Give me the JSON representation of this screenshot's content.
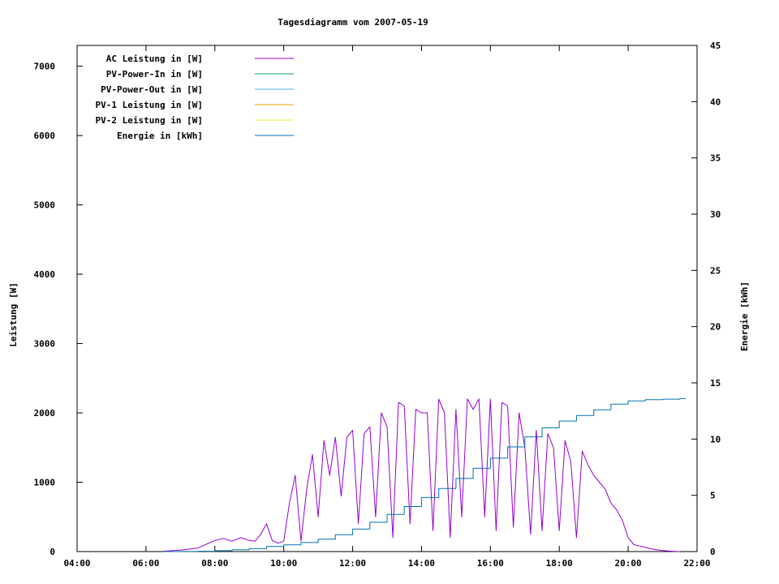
{
  "chart_data": {
    "type": "line",
    "title": "Tagesdiagramm vom 2007-05-19",
    "ylabel": "Leistung [W]",
    "y2label": "Energie [kWh]",
    "xlabel": "",
    "xlim": [
      "04:00",
      "22:00"
    ],
    "ylim": [
      0,
      7300
    ],
    "y2lim": [
      0,
      45
    ],
    "x_ticks": [
      "04:00",
      "06:00",
      "08:00",
      "10:00",
      "12:00",
      "14:00",
      "16:00",
      "18:00",
      "20:00",
      "22:00"
    ],
    "y_ticks": [
      0,
      1000,
      2000,
      3000,
      4000,
      5000,
      6000,
      7000
    ],
    "y2_ticks": [
      0,
      5,
      10,
      15,
      20,
      25,
      30,
      35,
      40,
      45
    ],
    "grid": false,
    "legend_position": "top-left",
    "legend": [
      {
        "label": "AC Leistung in [W]",
        "color": "#9400d3"
      },
      {
        "label": "PV-Power-In in [W]",
        "color": "#009e73"
      },
      {
        "label": "PV-Power-Out in [W]",
        "color": "#56b4e9"
      },
      {
        "label": "PV-1 Leistung in [W]",
        "color": "#e69f00"
      },
      {
        "label": "PV-2 Leistung in [W]",
        "color": "#f0e442"
      },
      {
        "label": "Energie in [kWh]",
        "color": "#0072b2"
      }
    ],
    "series": [
      {
        "name": "AC Leistung in [W]",
        "color": "#9400d3",
        "axis": "left",
        "x": [
          "06:30",
          "07:00",
          "07:30",
          "08:00",
          "08:15",
          "08:30",
          "08:45",
          "09:00",
          "09:10",
          "09:20",
          "09:30",
          "09:40",
          "09:50",
          "10:00",
          "10:10",
          "10:20",
          "10:30",
          "10:40",
          "10:50",
          "11:00",
          "11:10",
          "11:20",
          "11:30",
          "11:40",
          "11:50",
          "12:00",
          "12:10",
          "12:20",
          "12:30",
          "12:40",
          "12:50",
          "13:00",
          "13:10",
          "13:20",
          "13:30",
          "13:40",
          "13:50",
          "14:00",
          "14:10",
          "14:20",
          "14:30",
          "14:40",
          "14:50",
          "15:00",
          "15:10",
          "15:20",
          "15:30",
          "15:40",
          "15:50",
          "16:00",
          "16:10",
          "16:20",
          "16:30",
          "16:40",
          "16:50",
          "17:00",
          "17:10",
          "17:20",
          "17:30",
          "17:40",
          "17:50",
          "18:00",
          "18:10",
          "18:20",
          "18:30",
          "18:40",
          "18:50",
          "19:00",
          "19:10",
          "19:20",
          "19:30",
          "19:40",
          "19:50",
          "20:00",
          "20:10",
          "20:20",
          "20:30",
          "20:40",
          "20:50",
          "21:00",
          "21:10",
          "21:20",
          "21:30"
        ],
        "values": [
          5,
          20,
          50,
          160,
          190,
          150,
          200,
          160,
          150,
          250,
          400,
          160,
          120,
          150,
          700,
          1100,
          150,
          900,
          1400,
          500,
          1600,
          1100,
          1650,
          800,
          1650,
          1750,
          400,
          1700,
          1800,
          500,
          2000,
          1800,
          200,
          2150,
          2100,
          400,
          2050,
          2000,
          2000,
          300,
          2200,
          2000,
          200,
          2050,
          500,
          2200,
          2050,
          2200,
          500,
          2200,
          300,
          2150,
          2100,
          350,
          2000,
          1500,
          250,
          1750,
          300,
          1700,
          1500,
          300,
          1600,
          1300,
          200,
          1450,
          1250,
          1100,
          1000,
          900,
          700,
          600,
          450,
          200,
          100,
          80,
          60,
          40,
          25,
          15,
          8,
          3,
          0
        ]
      },
      {
        "name": "Energie in [kWh]",
        "color": "#0072b2",
        "axis": "right",
        "x": [
          "06:30",
          "07:00",
          "07:30",
          "08:00",
          "08:30",
          "09:00",
          "09:30",
          "10:00",
          "10:30",
          "11:00",
          "11:30",
          "12:00",
          "12:30",
          "13:00",
          "13:30",
          "14:00",
          "14:30",
          "15:00",
          "15:30",
          "16:00",
          "16:30",
          "17:00",
          "17:30",
          "18:00",
          "18:30",
          "19:00",
          "19:30",
          "20:00",
          "20:30",
          "21:00",
          "21:30",
          "21:40"
        ],
        "values": [
          0,
          0.01,
          0.03,
          0.08,
          0.16,
          0.26,
          0.45,
          0.6,
          0.8,
          1.1,
          1.5,
          2.0,
          2.6,
          3.3,
          4.0,
          4.8,
          5.6,
          6.5,
          7.4,
          8.3,
          9.3,
          10.2,
          11.0,
          11.6,
          12.1,
          12.6,
          13.1,
          13.4,
          13.5,
          13.55,
          13.6,
          13.6
        ]
      }
    ]
  }
}
